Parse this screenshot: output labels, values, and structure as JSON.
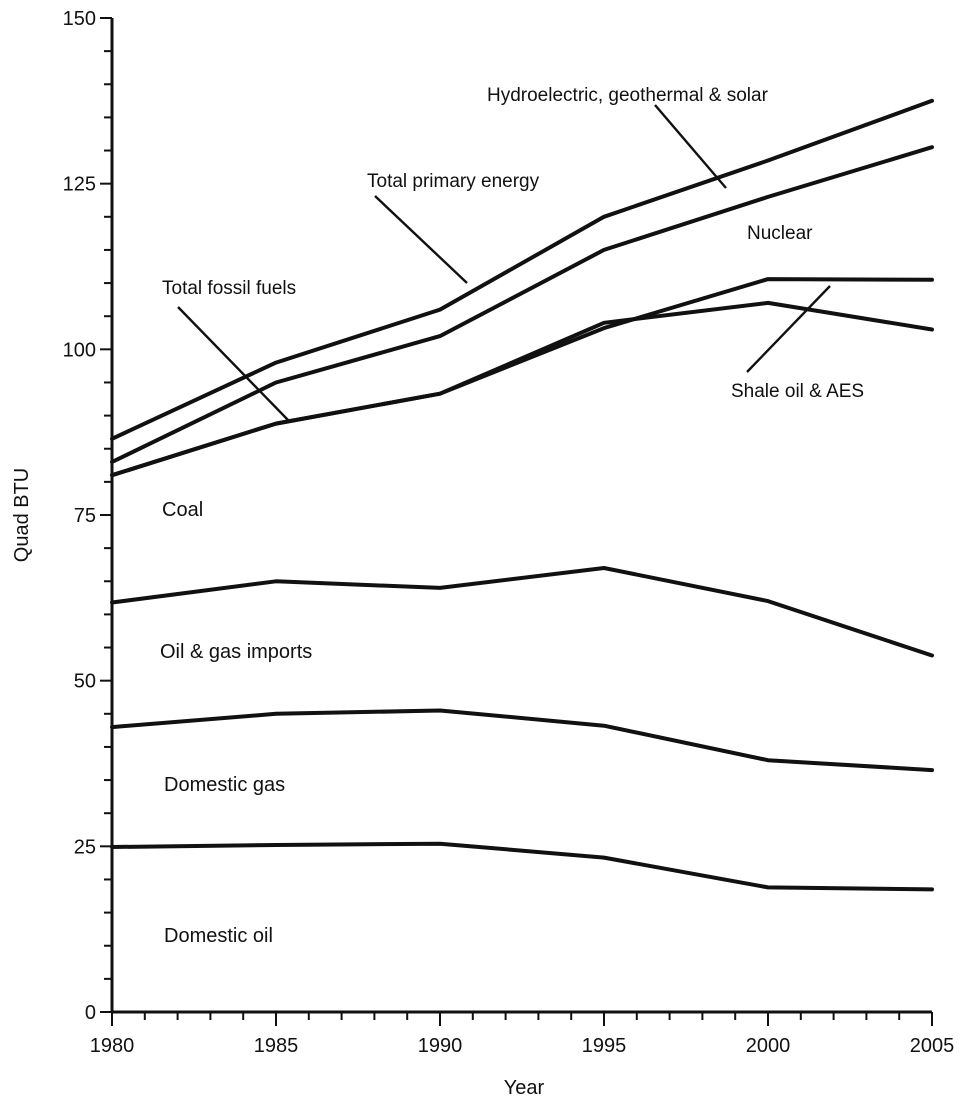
{
  "chart_data": {
    "type": "line",
    "title": "",
    "xlabel": "Year",
    "ylabel": "Quad BTU",
    "xlim": [
      1980,
      2005
    ],
    "ylim": [
      0,
      150
    ],
    "x_ticks": [
      "1980",
      "1985",
      "1990",
      "1995",
      "2000",
      "2005"
    ],
    "y_ticks": [
      "0",
      "25",
      "50",
      "75",
      "100",
      "125",
      "150"
    ],
    "grid": false,
    "line_color": "#111111",
    "series": [
      {
        "x": [
          1980,
          1985,
          1990,
          1995,
          2000,
          2005
        ],
        "y": [
          24.9,
          25.2,
          25.4,
          23.3,
          18.8,
          18.5
        ]
      },
      {
        "x": [
          1980,
          1985,
          1990,
          1995,
          2000,
          2005
        ],
        "y": [
          43.0,
          45.0,
          45.5,
          43.2,
          38.0,
          36.5
        ]
      },
      {
        "x": [
          1980,
          1985,
          1990,
          1995,
          2000,
          2005
        ],
        "y": [
          61.8,
          65.0,
          64.0,
          67.0,
          62.0,
          53.8
        ]
      },
      {
        "x": [
          1980,
          1985,
          1990,
          1995,
          2000,
          2005
        ],
        "y": [
          81.0,
          88.8,
          93.3,
          104.0,
          107.0,
          103.0
        ]
      },
      {
        "x": [
          1980,
          1985,
          1990,
          1995,
          2000,
          2005
        ],
        "y": [
          81.0,
          88.8,
          93.3,
          103.2,
          110.6,
          110.5
        ]
      },
      {
        "x": [
          1980,
          1985,
          1990,
          1995,
          2000,
          2005
        ],
        "y": [
          83.0,
          95.0,
          102.0,
          115.0,
          123.0,
          130.5
        ]
      },
      {
        "x": [
          1980,
          1985,
          1990,
          1995,
          2000,
          2005
        ],
        "y": [
          86.5,
          98.0,
          106.0,
          120.0,
          128.5,
          137.5
        ]
      }
    ],
    "annotations": [
      {
        "text": "Hydroelectric, geothermal & solar",
        "leader": true
      },
      {
        "text": "Total primary energy",
        "leader": true
      },
      {
        "text": "Nuclear",
        "leader": false
      },
      {
        "text": "Total fossil fuels",
        "leader": true
      },
      {
        "text": "Shale oil & AES",
        "leader": true
      }
    ],
    "area_labels": [
      "Coal",
      "Oil & gas imports",
      "Domestic gas",
      "Domestic oil"
    ]
  }
}
